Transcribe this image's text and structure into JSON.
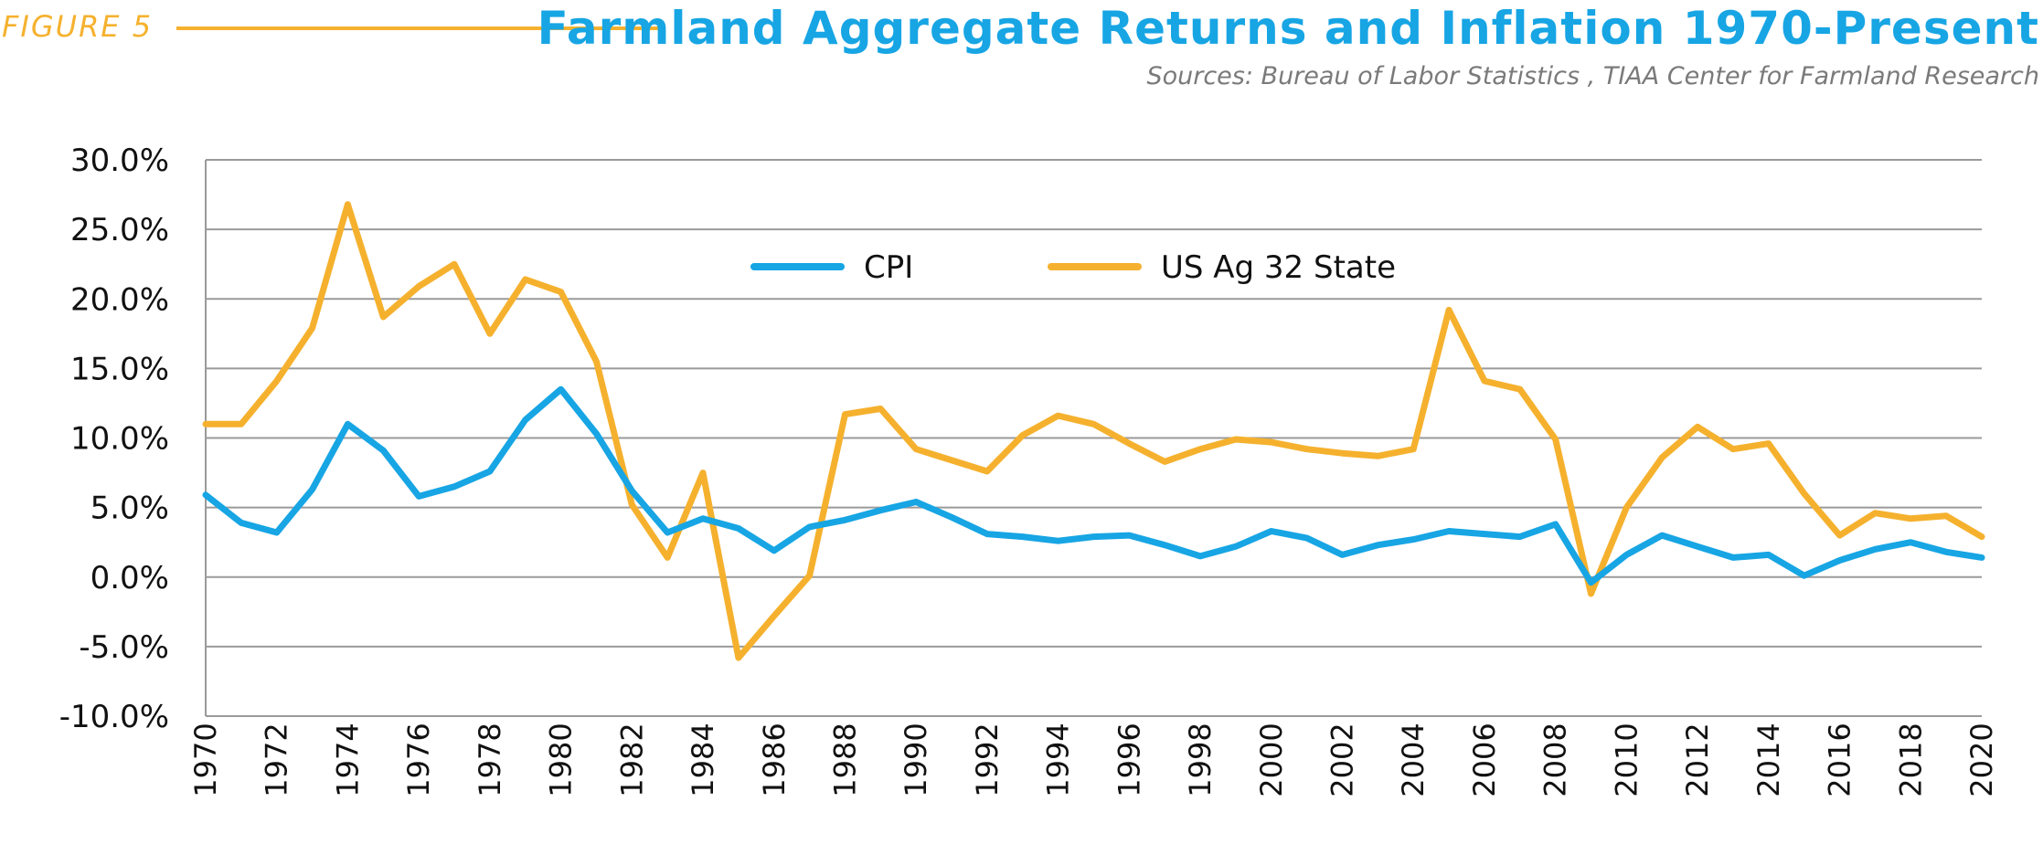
{
  "header": {
    "figure_label": "FIGURE 5",
    "title": "Farmland Aggregate Returns and Inflation 1970-Present",
    "sources": "Sources: Bureau of Labor Statistics , TIAA Center for Farmland Research"
  },
  "colors": {
    "cpi": "#17A5E4",
    "ag": "#F5B12E",
    "grid": "#9a9a9a",
    "text": "#111111"
  },
  "chart_data": {
    "type": "line",
    "title": "Farmland Aggregate Returns and Inflation 1970-Present",
    "xlabel": "",
    "ylabel": "",
    "ylim": [
      -10,
      30
    ],
    "xlim": [
      1970,
      2020
    ],
    "grid": "horizontal",
    "legend_position": "top-center",
    "y_ticks": [
      "30.0%",
      "25.0%",
      "20.0%",
      "15.0%",
      "10.0%",
      "5.0%",
      "0.0%",
      "-5.0%",
      "-10.0%"
    ],
    "y_tick_values": [
      30,
      25,
      20,
      15,
      10,
      5,
      0,
      -5,
      -10
    ],
    "x_tick_labels": [
      "1970",
      "1972",
      "1974",
      "1976",
      "1978",
      "1980",
      "1982",
      "1984",
      "1986",
      "1988",
      "1990",
      "1992",
      "1994",
      "1996",
      "1998",
      "2000",
      "2002",
      "2004",
      "2006",
      "2008",
      "2010",
      "2012",
      "2014",
      "2016",
      "2018",
      "2020"
    ],
    "x": [
      1970,
      1971,
      1972,
      1973,
      1974,
      1975,
      1976,
      1977,
      1978,
      1979,
      1980,
      1981,
      1982,
      1983,
      1984,
      1985,
      1986,
      1987,
      1988,
      1989,
      1990,
      1991,
      1992,
      1993,
      1994,
      1995,
      1996,
      1997,
      1998,
      1999,
      2000,
      2001,
      2002,
      2003,
      2004,
      2005,
      2006,
      2007,
      2008,
      2009,
      2010,
      2011,
      2012,
      2013,
      2014,
      2015,
      2016,
      2017,
      2018,
      2019,
      2020
    ],
    "series": [
      {
        "name": "CPI",
        "values": [
          5.9,
          3.9,
          3.2,
          6.3,
          11.0,
          9.1,
          5.8,
          6.5,
          7.6,
          11.3,
          13.5,
          10.3,
          6.2,
          3.2,
          4.2,
          3.5,
          1.9,
          3.6,
          4.1,
          4.8,
          5.4,
          4.3,
          3.1,
          2.9,
          2.6,
          2.9,
          3.0,
          2.3,
          1.5,
          2.2,
          3.3,
          2.8,
          1.6,
          2.3,
          2.7,
          3.3,
          3.1,
          2.9,
          3.8,
          -0.4,
          1.6,
          3.0,
          2.2,
          1.4,
          1.6,
          0.1,
          1.2,
          2.0,
          2.5,
          1.8,
          1.4
        ]
      },
      {
        "name": "US Ag 32 State",
        "values": [
          11.0,
          11.0,
          14.1,
          17.9,
          26.8,
          18.7,
          20.9,
          22.5,
          17.5,
          21.4,
          20.5,
          15.5,
          5.2,
          1.4,
          7.5,
          -5.8,
          -2.8,
          0.1,
          11.7,
          12.1,
          9.2,
          8.4,
          7.6,
          10.2,
          11.6,
          11.0,
          9.6,
          8.3,
          9.2,
          9.9,
          9.7,
          9.2,
          8.9,
          8.7,
          9.2,
          19.2,
          14.1,
          13.5,
          9.9,
          -1.2,
          5.0,
          8.6,
          10.8,
          9.2,
          9.6,
          6.0,
          3.0,
          4.6,
          4.2,
          4.4,
          2.9
        ]
      }
    ]
  }
}
